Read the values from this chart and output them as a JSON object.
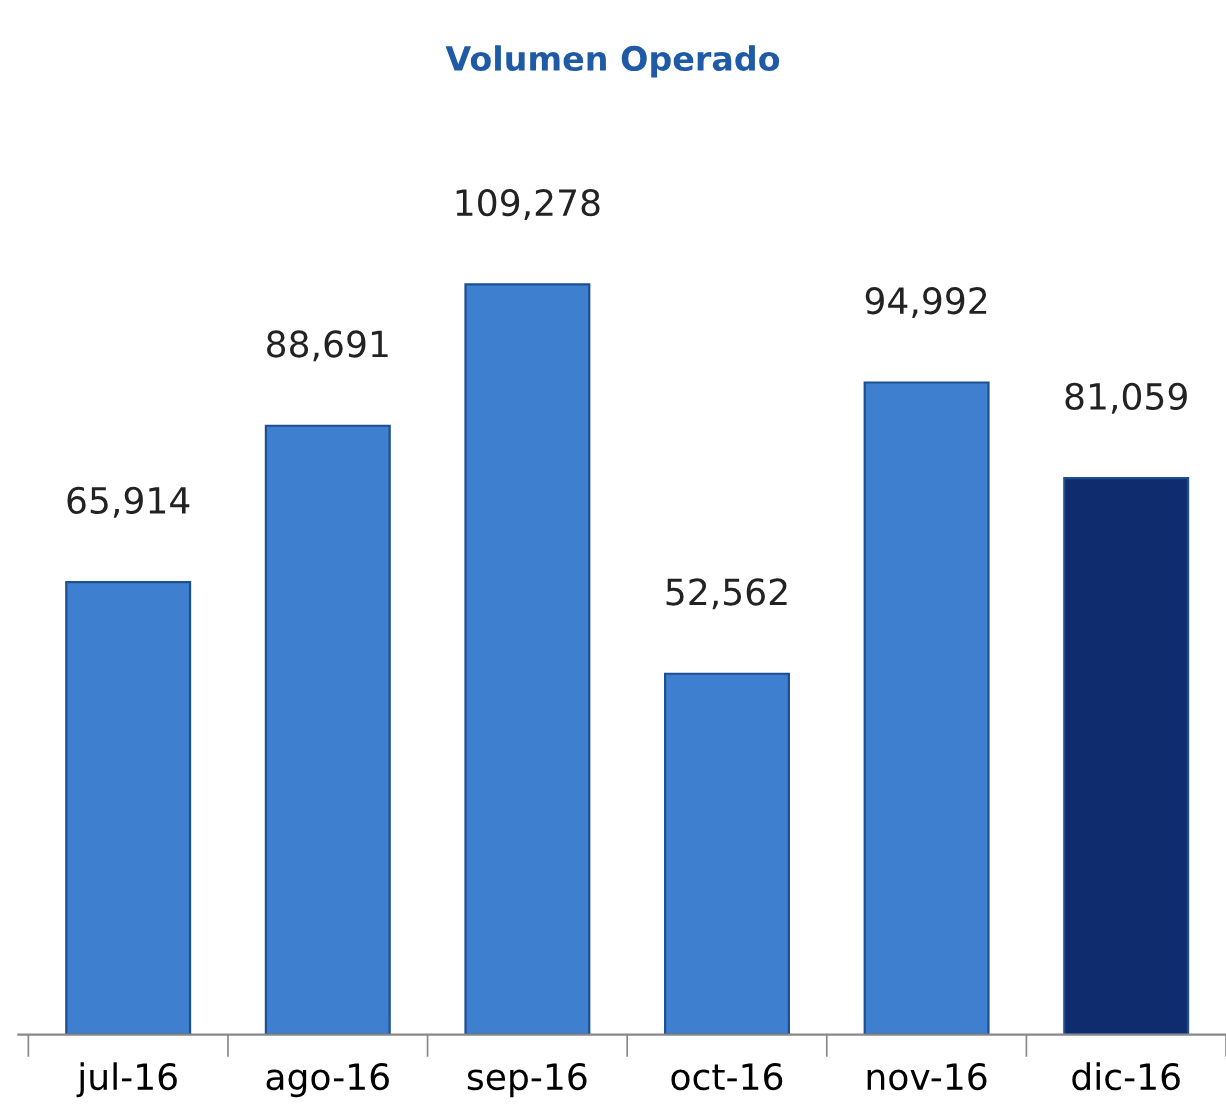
{
  "chart_data": {
    "type": "bar",
    "title": "Volumen Operado",
    "categories": [
      "jul-16",
      "ago-16",
      "sep-16",
      "oct-16",
      "nov-16",
      "dic-16"
    ],
    "values": [
      65914,
      88691,
      109278,
      52562,
      94992,
      81059
    ],
    "value_labels": [
      "65,914",
      "88,691",
      "109,278",
      "52,562",
      "94,992",
      "81,059"
    ],
    "colors": [
      "#3f7fd0",
      "#3f7fd0",
      "#3f7fd0",
      "#3f7fd0",
      "#3f7fd0",
      "#0f2d6e"
    ],
    "grid": false,
    "legend": false
  }
}
